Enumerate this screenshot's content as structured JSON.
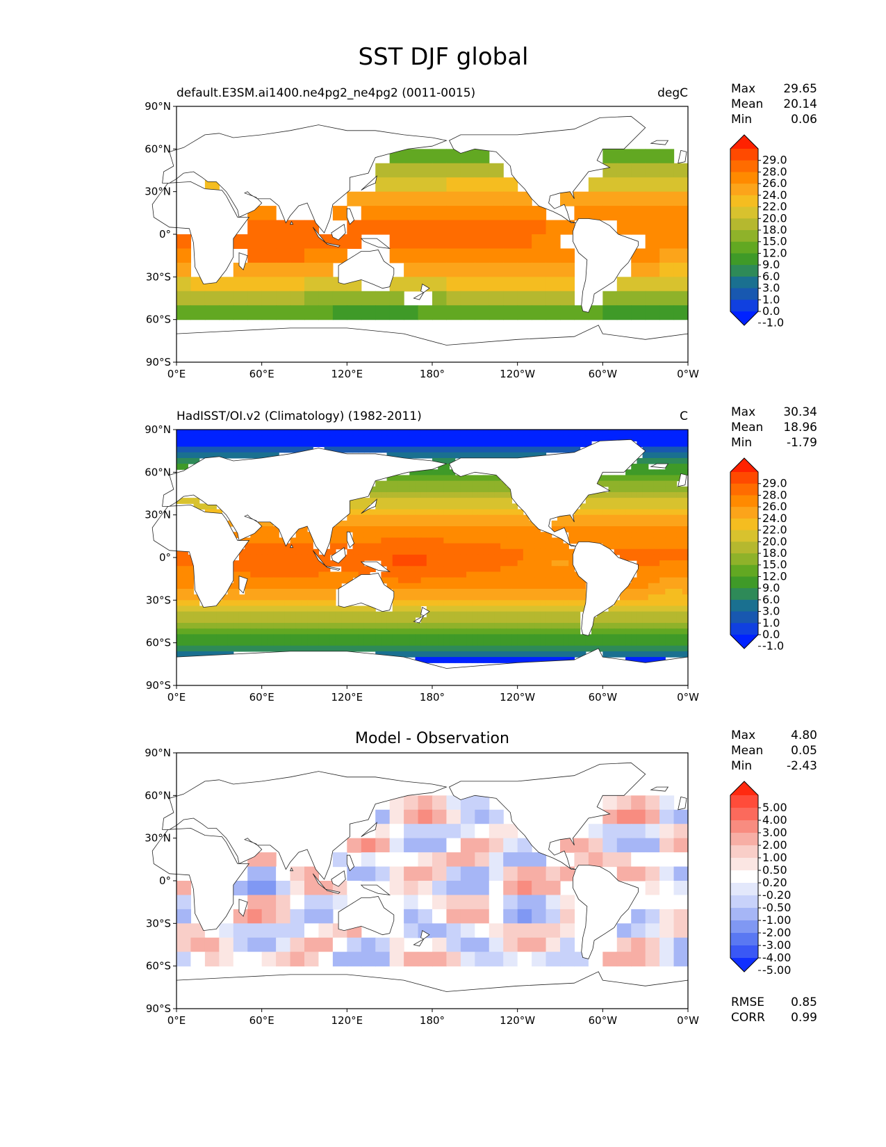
{
  "title": "SST DJF global",
  "chart_data": [
    {
      "type": "heatmap",
      "left_title": "default.E3SM.ai1400.ne4pg2_ne4pg2 (0011-0015)",
      "right_title": "degC",
      "stats": [
        {
          "label": "Max",
          "value": "29.65"
        },
        {
          "label": "Mean",
          "value": "20.14"
        },
        {
          "label": "Min",
          "value": "0.06"
        }
      ],
      "colorbar": {
        "levels": [
          "29.0",
          "28.0",
          "26.0",
          "24.0",
          "22.0",
          "20.0",
          "18.0",
          "15.0",
          "12.0",
          "9.0",
          "6.0",
          "3.0",
          "1.0",
          "0.0",
          "-1.0"
        ],
        "colors": [
          "#ff2200",
          "#ff4a00",
          "#ff6c00",
          "#ff8a00",
          "#fca41a",
          "#f5bd20",
          "#d8c22e",
          "#b5b82f",
          "#8fb22a",
          "#62a822",
          "#3f9a28",
          "#2e8a58",
          "#1a7090",
          "#1858b0",
          "#1040e0",
          "#0022ff"
        ]
      },
      "xticks": [
        "0°E",
        "60°E",
        "120°E",
        "180°",
        "120°W",
        "60°W",
        "0°W"
      ],
      "yticks": [
        "90°N",
        "60°N",
        "30°N",
        "0°",
        "30°S",
        "60°S",
        "90°S"
      ],
      "field": "model"
    },
    {
      "type": "heatmap",
      "left_title": "HadISST/OI.v2 (Climatology) (1982-2011)",
      "right_title": "C",
      "stats": [
        {
          "label": "Max",
          "value": "30.34"
        },
        {
          "label": "Mean",
          "value": "18.96"
        },
        {
          "label": "Min",
          "value": "-1.79"
        }
      ],
      "colorbar": {
        "levels": [
          "29.0",
          "28.0",
          "26.0",
          "24.0",
          "22.0",
          "20.0",
          "18.0",
          "15.0",
          "12.0",
          "9.0",
          "6.0",
          "3.0",
          "1.0",
          "0.0",
          "-1.0"
        ],
        "colors": [
          "#ff2200",
          "#ff4a00",
          "#ff6c00",
          "#ff8a00",
          "#fca41a",
          "#f5bd20",
          "#d8c22e",
          "#b5b82f",
          "#8fb22a",
          "#62a822",
          "#3f9a28",
          "#2e8a58",
          "#1a7090",
          "#1858b0",
          "#1040e0",
          "#0022ff"
        ]
      },
      "xticks": [
        "0°E",
        "60°E",
        "120°E",
        "180°",
        "120°W",
        "60°W",
        "0°W"
      ],
      "yticks": [
        "90°N",
        "60°N",
        "30°N",
        "0°",
        "30°S",
        "60°S",
        "90°S"
      ],
      "field": "obs"
    },
    {
      "type": "heatmap",
      "center_title": "Model - Observation",
      "stats": [
        {
          "label": "Max",
          "value": "4.80"
        },
        {
          "label": "Mean",
          "value": "0.05"
        },
        {
          "label": "Min",
          "value": "-2.43"
        }
      ],
      "colorbar": {
        "levels": [
          "5.00",
          "4.00",
          "3.00",
          "2.00",
          "1.00",
          "0.50",
          "0.20",
          "-0.20",
          "-0.50",
          "-1.00",
          "-2.00",
          "-3.00",
          "-4.00",
          "-5.00"
        ],
        "colors": [
          "#ff2a10",
          "#ff4c3a",
          "#fb6a5c",
          "#f88c80",
          "#f7aea5",
          "#f9cec8",
          "#fbe6e3",
          "#ffffff",
          "#e3e8fb",
          "#c8d2fa",
          "#a6b6f6",
          "#8098f3",
          "#5a78f2",
          "#3a58f5",
          "#1030ff"
        ]
      },
      "bottom_stats": [
        {
          "label": "RMSE",
          "value": "0.85"
        },
        {
          "label": "CORR",
          "value": "0.99"
        }
      ],
      "xticks": [
        "0°E",
        "60°E",
        "120°E",
        "180°",
        "120°W",
        "60°W",
        "0°W"
      ],
      "yticks": [
        "90°N",
        "60°N",
        "30°N",
        "0°",
        "30°S",
        "60°S",
        "90°S"
      ],
      "field": "diff"
    }
  ]
}
